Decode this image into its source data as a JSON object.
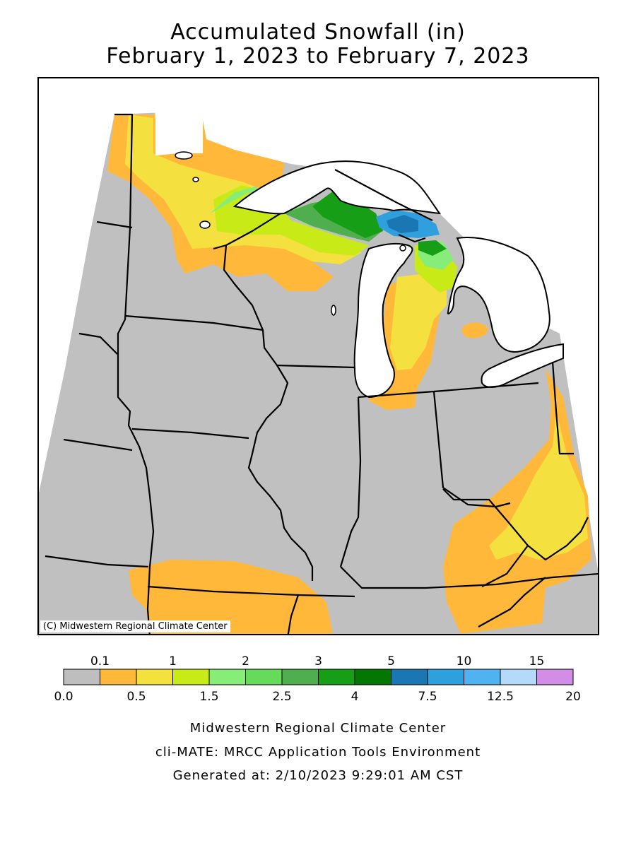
{
  "title": {
    "line1": "Accumulated Snowfall (in)",
    "line2": "February 1, 2023 to February 7, 2023"
  },
  "map": {
    "copyright": "(C) Midwestern Regional Climate Center",
    "colors": {
      "land_trace": "#c0c0c0",
      "lake": "#ffffff",
      "boundary": "#000000"
    }
  },
  "legend": {
    "upper_labels": [
      "0.1",
      "1",
      "2",
      "3",
      "5",
      "10",
      "15"
    ],
    "lower_labels": [
      "0.0",
      "0.5",
      "1.5",
      "2.5",
      "4",
      "7.5",
      "12.5",
      "20"
    ],
    "colors": [
      "#bebebe",
      "#ffb839",
      "#f4e13f",
      "#c8eb18",
      "#86ed79",
      "#66da5b",
      "#4faf4f",
      "#169e17",
      "#027701",
      "#1b77b4",
      "#309fdd",
      "#4eb3f0",
      "#b4dafb",
      "#d28de7"
    ]
  },
  "footer": {
    "line1": "Midwestern Regional Climate Center",
    "line2": "cli-MATE: MRCC Application Tools Environment",
    "line3": "Generated at: 2/10/2023 9:29:01 AM CST"
  }
}
